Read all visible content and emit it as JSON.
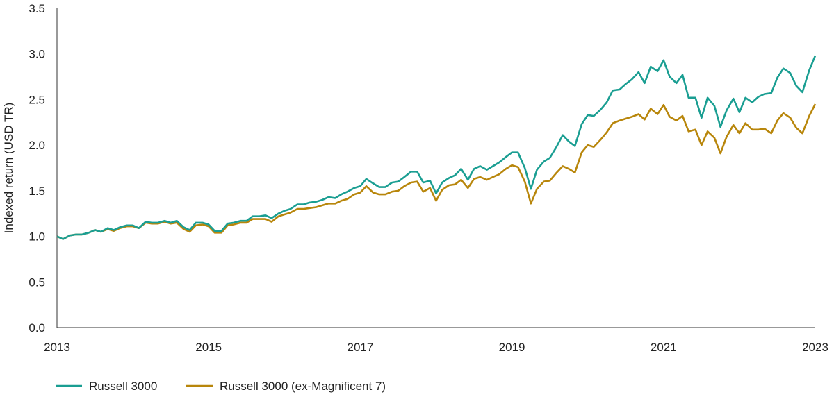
{
  "chart_data": {
    "type": "line",
    "title": "",
    "xlabel": "",
    "ylabel": "Indexed return (USD TR)",
    "xlim": [
      2013.0,
      2023.0
    ],
    "ylim": [
      0.0,
      3.5
    ],
    "x_ticks": [
      2013,
      2015,
      2017,
      2019,
      2021,
      2023
    ],
    "x_tick_labels": [
      "2013",
      "2015",
      "2017",
      "2019",
      "2021",
      "2023"
    ],
    "y_ticks": [
      0.0,
      0.5,
      1.0,
      1.5,
      2.0,
      2.5,
      3.0,
      3.5
    ],
    "y_tick_labels": [
      "0.0",
      "0.5",
      "1.0",
      "1.5",
      "2.0",
      "2.5",
      "3.0",
      "3.5"
    ],
    "grid": false,
    "legend_position": "bottom-left",
    "series": [
      {
        "name": "Russell 3000",
        "color": "#1a9e92",
        "points": [
          [
            2013.0,
            1.0
          ],
          [
            2013.08,
            0.97
          ],
          [
            2013.17,
            1.01
          ],
          [
            2013.25,
            1.02
          ],
          [
            2013.33,
            1.02
          ],
          [
            2013.42,
            1.04
          ],
          [
            2013.5,
            1.07
          ],
          [
            2013.58,
            1.05
          ],
          [
            2013.67,
            1.09
          ],
          [
            2013.75,
            1.07
          ],
          [
            2013.83,
            1.1
          ],
          [
            2013.92,
            1.12
          ],
          [
            2014.0,
            1.12
          ],
          [
            2014.08,
            1.09
          ],
          [
            2014.17,
            1.16
          ],
          [
            2014.25,
            1.15
          ],
          [
            2014.33,
            1.15
          ],
          [
            2014.42,
            1.17
          ],
          [
            2014.5,
            1.15
          ],
          [
            2014.58,
            1.17
          ],
          [
            2014.67,
            1.1
          ],
          [
            2014.75,
            1.07
          ],
          [
            2014.83,
            1.15
          ],
          [
            2014.92,
            1.15
          ],
          [
            2015.0,
            1.13
          ],
          [
            2015.08,
            1.06
          ],
          [
            2015.17,
            1.06
          ],
          [
            2015.25,
            1.14
          ],
          [
            2015.33,
            1.15
          ],
          [
            2015.42,
            1.17
          ],
          [
            2015.5,
            1.17
          ],
          [
            2015.58,
            1.22
          ],
          [
            2015.67,
            1.22
          ],
          [
            2015.75,
            1.23
          ],
          [
            2015.83,
            1.2
          ],
          [
            2015.92,
            1.25
          ],
          [
            2016.0,
            1.28
          ],
          [
            2016.08,
            1.3
          ],
          [
            2016.17,
            1.35
          ],
          [
            2016.25,
            1.35
          ],
          [
            2016.33,
            1.37
          ],
          [
            2016.42,
            1.38
          ],
          [
            2016.5,
            1.4
          ],
          [
            2016.58,
            1.43
          ],
          [
            2016.67,
            1.42
          ],
          [
            2016.75,
            1.46
          ],
          [
            2016.83,
            1.49
          ],
          [
            2016.92,
            1.53
          ],
          [
            2017.0,
            1.55
          ],
          [
            2017.08,
            1.63
          ],
          [
            2017.17,
            1.58
          ],
          [
            2017.25,
            1.54
          ],
          [
            2017.33,
            1.54
          ],
          [
            2017.42,
            1.59
          ],
          [
            2017.5,
            1.6
          ],
          [
            2017.58,
            1.65
          ],
          [
            2017.67,
            1.71
          ],
          [
            2017.75,
            1.71
          ],
          [
            2017.83,
            1.59
          ],
          [
            2017.92,
            1.61
          ],
          [
            2018.0,
            1.47
          ],
          [
            2018.08,
            1.59
          ],
          [
            2018.17,
            1.64
          ],
          [
            2018.25,
            1.67
          ],
          [
            2018.33,
            1.74
          ],
          [
            2018.42,
            1.62
          ],
          [
            2018.5,
            1.74
          ],
          [
            2018.58,
            1.77
          ],
          [
            2018.67,
            1.73
          ],
          [
            2018.75,
            1.77
          ],
          [
            2018.83,
            1.81
          ],
          [
            2018.92,
            1.87
          ],
          [
            2019.0,
            1.92
          ],
          [
            2019.08,
            1.92
          ],
          [
            2019.17,
            1.75
          ],
          [
            2019.25,
            1.52
          ],
          [
            2019.33,
            1.73
          ],
          [
            2019.42,
            1.82
          ],
          [
            2019.5,
            1.86
          ],
          [
            2019.58,
            1.97
          ],
          [
            2019.67,
            2.11
          ],
          [
            2019.75,
            2.04
          ],
          [
            2019.83,
            1.99
          ],
          [
            2019.92,
            2.23
          ],
          [
            2020.0,
            2.33
          ],
          [
            2020.08,
            2.32
          ],
          [
            2020.17,
            2.39
          ],
          [
            2020.25,
            2.47
          ],
          [
            2020.33,
            2.6
          ],
          [
            2020.42,
            2.61
          ],
          [
            2020.5,
            2.67
          ],
          [
            2020.58,
            2.72
          ],
          [
            2020.67,
            2.8
          ],
          [
            2020.75,
            2.68
          ],
          [
            2020.83,
            2.86
          ],
          [
            2020.92,
            2.81
          ],
          [
            2021.0,
            2.93
          ],
          [
            2021.08,
            2.75
          ],
          [
            2021.17,
            2.68
          ],
          [
            2021.25,
            2.77
          ],
          [
            2021.33,
            2.52
          ],
          [
            2021.42,
            2.52
          ],
          [
            2021.5,
            2.3
          ],
          [
            2021.58,
            2.52
          ],
          [
            2021.67,
            2.43
          ],
          [
            2021.75,
            2.2
          ],
          [
            2021.83,
            2.38
          ],
          [
            2021.92,
            2.51
          ],
          [
            2022.0,
            2.36
          ],
          [
            2022.08,
            2.52
          ],
          [
            2022.17,
            2.47
          ],
          [
            2022.25,
            2.53
          ],
          [
            2022.33,
            2.56
          ],
          [
            2022.42,
            2.57
          ],
          [
            2022.5,
            2.74
          ],
          [
            2022.58,
            2.84
          ],
          [
            2022.67,
            2.79
          ],
          [
            2022.75,
            2.65
          ],
          [
            2022.83,
            2.58
          ],
          [
            2022.92,
            2.82
          ],
          [
            2023.0,
            2.98
          ]
        ]
      },
      {
        "name": "Russell 3000 (ex-Magnificent 7)",
        "color": "#b8860b",
        "points": [
          [
            2013.0,
            1.0
          ],
          [
            2013.08,
            0.97
          ],
          [
            2013.17,
            1.01
          ],
          [
            2013.25,
            1.02
          ],
          [
            2013.33,
            1.02
          ],
          [
            2013.42,
            1.04
          ],
          [
            2013.5,
            1.07
          ],
          [
            2013.58,
            1.05
          ],
          [
            2013.67,
            1.08
          ],
          [
            2013.75,
            1.06
          ],
          [
            2013.83,
            1.09
          ],
          [
            2013.92,
            1.11
          ],
          [
            2014.0,
            1.11
          ],
          [
            2014.08,
            1.09
          ],
          [
            2014.17,
            1.15
          ],
          [
            2014.25,
            1.14
          ],
          [
            2014.33,
            1.14
          ],
          [
            2014.42,
            1.16
          ],
          [
            2014.5,
            1.14
          ],
          [
            2014.58,
            1.15
          ],
          [
            2014.67,
            1.08
          ],
          [
            2014.75,
            1.05
          ],
          [
            2014.83,
            1.12
          ],
          [
            2014.92,
            1.13
          ],
          [
            2015.0,
            1.11
          ],
          [
            2015.08,
            1.04
          ],
          [
            2015.17,
            1.04
          ],
          [
            2015.25,
            1.12
          ],
          [
            2015.33,
            1.13
          ],
          [
            2015.42,
            1.15
          ],
          [
            2015.5,
            1.15
          ],
          [
            2015.58,
            1.19
          ],
          [
            2015.67,
            1.19
          ],
          [
            2015.75,
            1.19
          ],
          [
            2015.83,
            1.16
          ],
          [
            2015.92,
            1.22
          ],
          [
            2016.0,
            1.24
          ],
          [
            2016.08,
            1.26
          ],
          [
            2016.17,
            1.3
          ],
          [
            2016.25,
            1.3
          ],
          [
            2016.33,
            1.31
          ],
          [
            2016.42,
            1.32
          ],
          [
            2016.5,
            1.34
          ],
          [
            2016.58,
            1.36
          ],
          [
            2016.67,
            1.36
          ],
          [
            2016.75,
            1.39
          ],
          [
            2016.83,
            1.41
          ],
          [
            2016.92,
            1.46
          ],
          [
            2017.0,
            1.48
          ],
          [
            2017.08,
            1.55
          ],
          [
            2017.17,
            1.48
          ],
          [
            2017.25,
            1.46
          ],
          [
            2017.33,
            1.46
          ],
          [
            2017.42,
            1.49
          ],
          [
            2017.5,
            1.5
          ],
          [
            2017.58,
            1.55
          ],
          [
            2017.67,
            1.59
          ],
          [
            2017.75,
            1.6
          ],
          [
            2017.83,
            1.49
          ],
          [
            2017.92,
            1.53
          ],
          [
            2018.0,
            1.39
          ],
          [
            2018.08,
            1.51
          ],
          [
            2018.17,
            1.56
          ],
          [
            2018.25,
            1.57
          ],
          [
            2018.33,
            1.62
          ],
          [
            2018.42,
            1.53
          ],
          [
            2018.5,
            1.63
          ],
          [
            2018.58,
            1.65
          ],
          [
            2018.67,
            1.62
          ],
          [
            2018.75,
            1.65
          ],
          [
            2018.83,
            1.68
          ],
          [
            2018.92,
            1.74
          ],
          [
            2019.0,
            1.78
          ],
          [
            2019.08,
            1.76
          ],
          [
            2019.17,
            1.6
          ],
          [
            2019.25,
            1.36
          ],
          [
            2019.33,
            1.52
          ],
          [
            2019.42,
            1.6
          ],
          [
            2019.5,
            1.61
          ],
          [
            2019.58,
            1.69
          ],
          [
            2019.67,
            1.77
          ],
          [
            2019.75,
            1.74
          ],
          [
            2019.83,
            1.7
          ],
          [
            2019.92,
            1.92
          ],
          [
            2020.0,
            2.0
          ],
          [
            2020.08,
            1.98
          ],
          [
            2020.17,
            2.06
          ],
          [
            2020.25,
            2.14
          ],
          [
            2020.33,
            2.24
          ],
          [
            2020.42,
            2.27
          ],
          [
            2020.5,
            2.29
          ],
          [
            2020.58,
            2.31
          ],
          [
            2020.67,
            2.34
          ],
          [
            2020.75,
            2.28
          ],
          [
            2020.83,
            2.4
          ],
          [
            2020.92,
            2.34
          ],
          [
            2021.0,
            2.44
          ],
          [
            2021.08,
            2.31
          ],
          [
            2021.17,
            2.27
          ],
          [
            2021.25,
            2.32
          ],
          [
            2021.33,
            2.15
          ],
          [
            2021.42,
            2.17
          ],
          [
            2021.5,
            2.0
          ],
          [
            2021.58,
            2.15
          ],
          [
            2021.67,
            2.08
          ],
          [
            2021.75,
            1.91
          ],
          [
            2021.83,
            2.09
          ],
          [
            2021.92,
            2.22
          ],
          [
            2022.0,
            2.13
          ],
          [
            2022.08,
            2.24
          ],
          [
            2022.17,
            2.17
          ],
          [
            2022.25,
            2.17
          ],
          [
            2022.33,
            2.18
          ],
          [
            2022.42,
            2.13
          ],
          [
            2022.5,
            2.27
          ],
          [
            2022.58,
            2.35
          ],
          [
            2022.67,
            2.3
          ],
          [
            2022.75,
            2.19
          ],
          [
            2022.83,
            2.13
          ],
          [
            2022.92,
            2.32
          ],
          [
            2023.0,
            2.45
          ]
        ]
      }
    ]
  }
}
